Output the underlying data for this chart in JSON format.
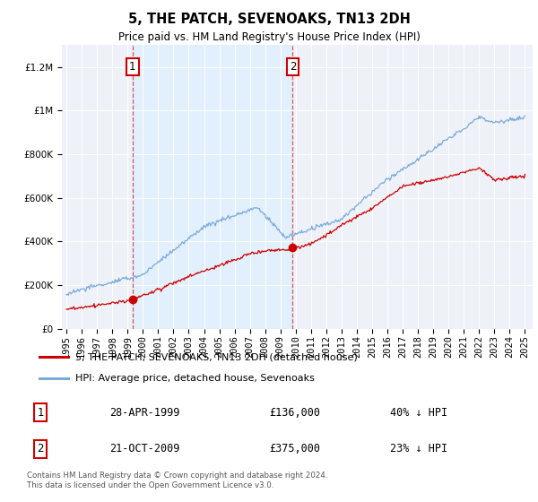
{
  "title": "5, THE PATCH, SEVENOAKS, TN13 2DH",
  "subtitle": "Price paid vs. HM Land Registry's House Price Index (HPI)",
  "legend_line1": "5, THE PATCH, SEVENOAKS, TN13 2DH (detached house)",
  "legend_line2": "HPI: Average price, detached house, Sevenoaks",
  "footer": "Contains HM Land Registry data © Crown copyright and database right 2024.\nThis data is licensed under the Open Government Licence v3.0.",
  "annotation1_label": "1",
  "annotation1_date": "28-APR-1999",
  "annotation1_price": "£136,000",
  "annotation1_hpi": "40% ↓ HPI",
  "annotation2_label": "2",
  "annotation2_date": "21-OCT-2009",
  "annotation2_price": "£375,000",
  "annotation2_hpi": "23% ↓ HPI",
  "red_color": "#cc0000",
  "blue_color": "#7aaadd",
  "blue_fill_color": "#ddeeff",
  "annotation_vline_color": "#dd4444",
  "background_color": "#eef2f8",
  "ylim": [
    0,
    1300000
  ],
  "yticks": [
    0,
    200000,
    400000,
    600000,
    800000,
    1000000,
    1200000
  ],
  "ann1_x": 1999.33,
  "ann1_y": 136000,
  "ann2_x": 2009.8,
  "ann2_y": 375000,
  "xlim_left": 1994.7,
  "xlim_right": 2025.5
}
